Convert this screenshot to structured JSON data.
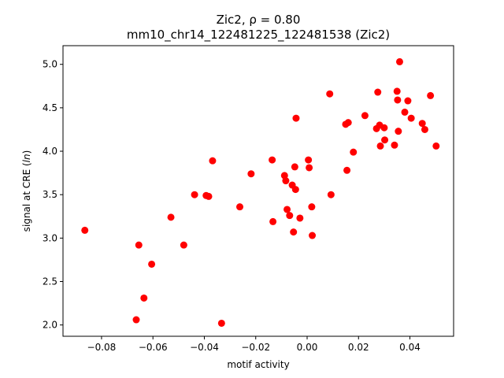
{
  "chart_data": {
    "type": "scatter",
    "title_line1": "Zic2, ρ = 0.80",
    "title_line2": "mm10_chr14_122481225_122481538 (Zic2)",
    "xlabel": "motif activity",
    "ylabel_prefix": "signal at CRE (",
    "ylabel_unit": "ln",
    "ylabel_suffix": ")",
    "xlim": [
      -0.095,
      0.057
    ],
    "ylim": [
      1.87,
      5.215
    ],
    "xticks": [
      -0.08,
      -0.06,
      -0.04,
      -0.02,
      0.0,
      0.02,
      0.04
    ],
    "xtick_labels": [
      "−0.08",
      "−0.06",
      "−0.04",
      "−0.02",
      "0.00",
      "0.02",
      "0.04"
    ],
    "yticks": [
      2.0,
      2.5,
      3.0,
      3.5,
      4.0,
      4.5,
      5.0
    ],
    "ytick_labels": [
      "2.0",
      "2.5",
      "3.0",
      "3.5",
      "4.0",
      "4.5",
      "5.0"
    ],
    "grid": false,
    "marker_color": "#ff0000",
    "points": [
      {
        "x": -0.0865,
        "y": 3.09
      },
      {
        "x": -0.0665,
        "y": 2.06
      },
      {
        "x": -0.0655,
        "y": 2.92
      },
      {
        "x": -0.0635,
        "y": 2.31
      },
      {
        "x": -0.0605,
        "y": 2.7
      },
      {
        "x": -0.053,
        "y": 3.24
      },
      {
        "x": -0.048,
        "y": 2.92
      },
      {
        "x": -0.0438,
        "y": 3.5
      },
      {
        "x": -0.0393,
        "y": 3.49
      },
      {
        "x": -0.0383,
        "y": 3.48
      },
      {
        "x": -0.0368,
        "y": 3.89
      },
      {
        "x": -0.0333,
        "y": 2.02
      },
      {
        "x": -0.0262,
        "y": 3.36
      },
      {
        "x": -0.0218,
        "y": 3.74
      },
      {
        "x": -0.0136,
        "y": 3.9
      },
      {
        "x": -0.0133,
        "y": 3.19
      },
      {
        "x": -0.0088,
        "y": 3.72
      },
      {
        "x": -0.0083,
        "y": 3.66
      },
      {
        "x": -0.0078,
        "y": 3.33
      },
      {
        "x": -0.0068,
        "y": 3.26
      },
      {
        "x": -0.0058,
        "y": 3.61
      },
      {
        "x": -0.0053,
        "y": 3.07
      },
      {
        "x": -0.0048,
        "y": 3.82
      },
      {
        "x": -0.0045,
        "y": 3.56
      },
      {
        "x": -0.0043,
        "y": 4.38
      },
      {
        "x": -0.0028,
        "y": 3.23
      },
      {
        "x": 0.0005,
        "y": 3.9
      },
      {
        "x": 0.0008,
        "y": 3.81
      },
      {
        "x": 0.0018,
        "y": 3.36
      },
      {
        "x": 0.002,
        "y": 3.03
      },
      {
        "x": 0.0088,
        "y": 4.66
      },
      {
        "x": 0.0093,
        "y": 3.5
      },
      {
        "x": 0.015,
        "y": 4.31
      },
      {
        "x": 0.0155,
        "y": 3.78
      },
      {
        "x": 0.016,
        "y": 4.33
      },
      {
        "x": 0.018,
        "y": 3.99
      },
      {
        "x": 0.0225,
        "y": 4.41
      },
      {
        "x": 0.027,
        "y": 4.26
      },
      {
        "x": 0.0275,
        "y": 4.68
      },
      {
        "x": 0.0282,
        "y": 4.3
      },
      {
        "x": 0.0285,
        "y": 4.06
      },
      {
        "x": 0.03,
        "y": 4.27
      },
      {
        "x": 0.0302,
        "y": 4.13
      },
      {
        "x": 0.034,
        "y": 4.07
      },
      {
        "x": 0.035,
        "y": 4.69
      },
      {
        "x": 0.0352,
        "y": 4.59
      },
      {
        "x": 0.0355,
        "y": 4.23
      },
      {
        "x": 0.036,
        "y": 5.03
      },
      {
        "x": 0.038,
        "y": 4.45
      },
      {
        "x": 0.0392,
        "y": 4.58
      },
      {
        "x": 0.0405,
        "y": 4.38
      },
      {
        "x": 0.0448,
        "y": 4.32
      },
      {
        "x": 0.0458,
        "y": 4.25
      },
      {
        "x": 0.048,
        "y": 4.64
      },
      {
        "x": 0.0502,
        "y": 4.06
      }
    ]
  }
}
